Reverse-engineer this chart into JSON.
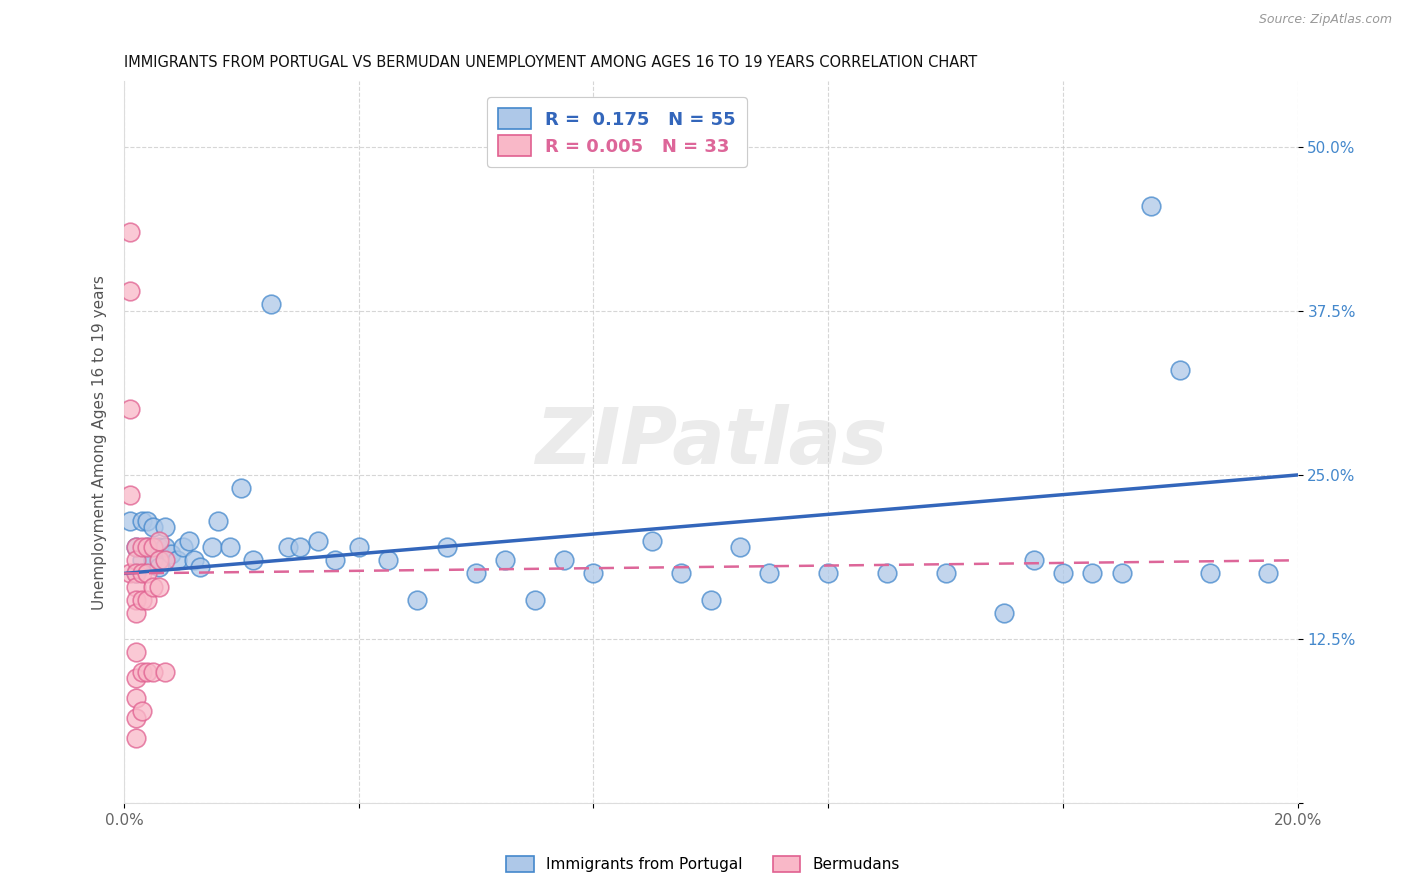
{
  "title": "IMMIGRANTS FROM PORTUGAL VS BERMUDAN UNEMPLOYMENT AMONG AGES 16 TO 19 YEARS CORRELATION CHART",
  "source": "Source: ZipAtlas.com",
  "ylabel": "Unemployment Among Ages 16 to 19 years",
  "legend1_label": "Immigrants from Portugal",
  "legend2_label": "Bermudans",
  "R1": "0.175",
  "N1": "55",
  "R2": "0.005",
  "N2": "33",
  "blue_color": "#aec8e8",
  "pink_color": "#f9b8c8",
  "blue_edge_color": "#4488cc",
  "pink_edge_color": "#e06090",
  "blue_line_color": "#3366bb",
  "pink_line_color": "#dd6699",
  "xlim": [
    0.0,
    0.2
  ],
  "ylim": [
    0.0,
    0.55
  ],
  "xtick_positions": [
    0.0,
    0.04,
    0.08,
    0.12,
    0.16,
    0.2
  ],
  "xtick_labels": [
    "0.0%",
    "",
    "",
    "",
    "",
    "20.0%"
  ],
  "ytick_positions": [
    0.0,
    0.125,
    0.25,
    0.375,
    0.5
  ],
  "ytick_labels": [
    "",
    "12.5%",
    "25.0%",
    "37.5%",
    "50.0%"
  ],
  "blue_x": [
    0.001,
    0.002,
    0.002,
    0.003,
    0.003,
    0.004,
    0.004,
    0.005,
    0.005,
    0.006,
    0.006,
    0.007,
    0.007,
    0.008,
    0.009,
    0.01,
    0.011,
    0.012,
    0.013,
    0.015,
    0.016,
    0.018,
    0.02,
    0.022,
    0.025,
    0.028,
    0.03,
    0.033,
    0.036,
    0.04,
    0.045,
    0.05,
    0.055,
    0.06,
    0.065,
    0.07,
    0.075,
    0.08,
    0.09,
    0.095,
    0.1,
    0.105,
    0.11,
    0.12,
    0.13,
    0.14,
    0.15,
    0.155,
    0.16,
    0.165,
    0.17,
    0.175,
    0.18,
    0.185,
    0.195
  ],
  "blue_y": [
    0.215,
    0.195,
    0.175,
    0.215,
    0.185,
    0.215,
    0.195,
    0.21,
    0.185,
    0.195,
    0.18,
    0.21,
    0.195,
    0.19,
    0.185,
    0.195,
    0.2,
    0.185,
    0.18,
    0.195,
    0.215,
    0.195,
    0.24,
    0.185,
    0.38,
    0.195,
    0.195,
    0.2,
    0.185,
    0.195,
    0.185,
    0.155,
    0.195,
    0.175,
    0.185,
    0.155,
    0.185,
    0.175,
    0.2,
    0.175,
    0.155,
    0.195,
    0.175,
    0.175,
    0.175,
    0.175,
    0.145,
    0.185,
    0.175,
    0.175,
    0.175,
    0.455,
    0.33,
    0.175,
    0.175
  ],
  "pink_x": [
    0.001,
    0.001,
    0.001,
    0.001,
    0.001,
    0.002,
    0.002,
    0.002,
    0.002,
    0.002,
    0.002,
    0.002,
    0.002,
    0.002,
    0.002,
    0.002,
    0.003,
    0.003,
    0.003,
    0.003,
    0.003,
    0.004,
    0.004,
    0.004,
    0.004,
    0.005,
    0.005,
    0.005,
    0.006,
    0.006,
    0.006,
    0.007,
    0.007
  ],
  "pink_y": [
    0.435,
    0.39,
    0.3,
    0.235,
    0.175,
    0.195,
    0.185,
    0.175,
    0.165,
    0.155,
    0.145,
    0.115,
    0.095,
    0.08,
    0.065,
    0.05,
    0.195,
    0.175,
    0.155,
    0.1,
    0.07,
    0.195,
    0.175,
    0.155,
    0.1,
    0.195,
    0.165,
    0.1,
    0.2,
    0.185,
    0.165,
    0.185,
    0.1
  ]
}
